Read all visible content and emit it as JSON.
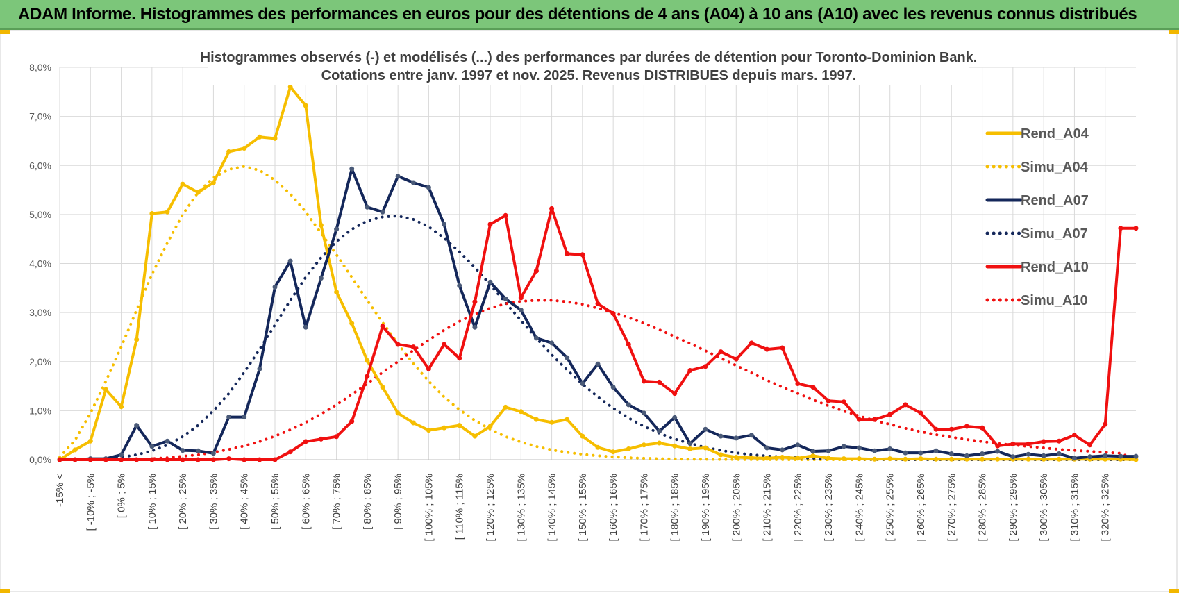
{
  "header": {
    "title": "ADAM Informe. Histogrammes des performances en euros pour des détentions de 4 ans (A04) à 10 ans (A10) avec les revenus connus distribués"
  },
  "colors": {
    "header_bg": "#7cc67a",
    "rend_a04": "#f6be00",
    "rend_a07": "#14275a",
    "rend_a10": "#f01010",
    "grid": "#d9d9d9",
    "axis_text": "#595959"
  },
  "chart_data": {
    "type": "line",
    "title": "Histogrammes observés (-) et modélisés (...) des performances par durées de détention pour Toronto-Dominion Bank.",
    "subtitle": "Cotations entre janv. 1997 et nov. 2025. Revenus DISTRIBUES depuis mars. 1997.",
    "xlabel": "",
    "ylabel": "",
    "ylim": [
      0,
      8
    ],
    "y_ticks": [
      "0,0%",
      "1,0%",
      "2,0%",
      "3,0%",
      "4,0%",
      "5,0%",
      "6,0%",
      "7,0%",
      "8,0%"
    ],
    "x_tick_labels": [
      "-15% <",
      "[ -10% ; -5%",
      "[ 0% ; 5%",
      "[ 10% ; 15%",
      "[ 20% ; 25%",
      "[ 30% ; 35%",
      "[ 40% ; 45%",
      "[ 50% ; 55%",
      "[ 60% ; 65%",
      "[ 70% ; 75%",
      "[ 80% ; 85%",
      "[ 90% ; 95%",
      "[ 100% ; 105%",
      "[ 110% ; 115%",
      "[ 120% ; 125%",
      "[ 130% ; 135%",
      "[ 140% ; 145%",
      "[ 150% ; 155%",
      "[ 160% ; 165%",
      "[ 170% ; 175%",
      "[ 180% ; 185%",
      "[ 190% ; 195%",
      "[ 200% ; 205%",
      "[ 210% ; 215%",
      "[ 220% ; 225%",
      "[ 230% ; 235%",
      "[ 240% ; 245%",
      "[ 250% ; 255%",
      "[ 260% ; 265%",
      "[ 270% ; 275%",
      "[ 280% ; 285%",
      "[ 290% ; 295%",
      "[ 300% ; 305%",
      "[ 310% ; 315%",
      "[ 320% ; 325%"
    ],
    "legend_position": "right",
    "series": [
      {
        "name": "Rend_A04",
        "style": "solid",
        "color": "#f6be00",
        "values": [
          0.0,
          0.2,
          0.38,
          1.43,
          1.08,
          2.45,
          5.02,
          5.05,
          5.62,
          5.45,
          5.65,
          6.28,
          6.35,
          6.58,
          6.55,
          7.6,
          7.22,
          4.78,
          3.42,
          2.78,
          2.02,
          1.48,
          0.95,
          0.75,
          0.6,
          0.65,
          0.7,
          0.48,
          0.68,
          1.07,
          0.98,
          0.82,
          0.76,
          0.82,
          0.48,
          0.25,
          0.16,
          0.22,
          0.3,
          0.34,
          0.28,
          0.22,
          0.24,
          0.1,
          0.05,
          0.04,
          0.03,
          0.05,
          0.03,
          0.08,
          0.03,
          0.02,
          0.02,
          0.01,
          0.02,
          0.01,
          0.02,
          0.01,
          0.01,
          0.01,
          0.01,
          0.01,
          0.01,
          0.01,
          0.01,
          0.01,
          0.01,
          0.01,
          0.01,
          0.01,
          0.0
        ]
      },
      {
        "name": "Simu_A04",
        "style": "dotted",
        "color": "#f6be00",
        "values": [
          0.05,
          0.4,
          0.95,
          1.6,
          2.3,
          3.05,
          3.78,
          4.42,
          5.0,
          5.45,
          5.75,
          5.92,
          5.98,
          5.9,
          5.7,
          5.42,
          5.05,
          4.62,
          4.18,
          3.72,
          3.25,
          2.8,
          2.36,
          1.96,
          1.6,
          1.28,
          1.02,
          0.8,
          0.62,
          0.47,
          0.36,
          0.27,
          0.2,
          0.15,
          0.11,
          0.08,
          0.06,
          0.04,
          0.03,
          0.02,
          0.015,
          0.01,
          0.008,
          0.005,
          0.004,
          0.003,
          0.002,
          0.001,
          0.0,
          0.0,
          0.0,
          0.0,
          0.0,
          0.0,
          0.0,
          0.0,
          0.0,
          0.0,
          0.0,
          0.0,
          0.0,
          0.0,
          0.0,
          0.0,
          0.0,
          0.0,
          0.0,
          0.0,
          0.0,
          0.0,
          0.0
        ]
      },
      {
        "name": "Rend_A07",
        "style": "solid",
        "color": "#14275a",
        "values": [
          0.0,
          0.0,
          0.02,
          0.02,
          0.1,
          0.7,
          0.27,
          0.38,
          0.19,
          0.18,
          0.13,
          0.87,
          0.87,
          1.85,
          3.52,
          4.05,
          2.7,
          3.7,
          4.7,
          5.93,
          5.15,
          5.05,
          5.78,
          5.65,
          5.55,
          4.8,
          3.55,
          2.7,
          3.62,
          3.28,
          3.05,
          2.48,
          2.38,
          2.08,
          1.55,
          1.95,
          1.48,
          1.12,
          0.95,
          0.58,
          0.86,
          0.33,
          0.62,
          0.48,
          0.44,
          0.5,
          0.24,
          0.2,
          0.3,
          0.17,
          0.18,
          0.27,
          0.24,
          0.18,
          0.22,
          0.14,
          0.14,
          0.18,
          0.12,
          0.08,
          0.12,
          0.17,
          0.06,
          0.11,
          0.08,
          0.12,
          0.03,
          0.06,
          0.08,
          0.07,
          0.07
        ]
      },
      {
        "name": "Simu_A07",
        "style": "dotted",
        "color": "#14275a",
        "values": [
          0.0,
          0.0,
          0.01,
          0.02,
          0.05,
          0.1,
          0.18,
          0.3,
          0.47,
          0.7,
          1.0,
          1.35,
          1.78,
          2.25,
          2.75,
          3.25,
          3.72,
          4.12,
          4.45,
          4.7,
          4.87,
          4.95,
          4.97,
          4.9,
          4.75,
          4.52,
          4.24,
          3.92,
          3.57,
          3.2,
          2.84,
          2.48,
          2.14,
          1.83,
          1.54,
          1.28,
          1.05,
          0.85,
          0.68,
          0.54,
          0.42,
          0.33,
          0.25,
          0.19,
          0.14,
          0.1,
          0.075,
          0.055,
          0.04,
          0.028,
          0.02,
          0.014,
          0.01,
          0.007,
          0.005,
          0.003,
          0.002,
          0.001,
          0.0,
          0.0,
          0.0,
          0.0,
          0.0,
          0.0,
          0.0,
          0.0,
          0.0,
          0.0,
          0.0,
          0.0,
          0.0
        ]
      },
      {
        "name": "Rend_A10",
        "style": "solid",
        "color": "#f01010",
        "values": [
          0.0,
          0.0,
          0.0,
          0.0,
          0.0,
          0.0,
          0.0,
          0.0,
          0.0,
          0.0,
          0.0,
          0.02,
          0.0,
          0.0,
          0.0,
          0.16,
          0.37,
          0.42,
          0.47,
          0.78,
          1.7,
          2.72,
          2.35,
          2.3,
          1.85,
          2.35,
          2.07,
          3.22,
          4.8,
          4.98,
          3.3,
          3.85,
          5.12,
          4.2,
          4.18,
          3.18,
          2.98,
          2.35,
          1.6,
          1.58,
          1.35,
          1.82,
          1.9,
          2.2,
          2.05,
          2.38,
          2.25,
          2.28,
          1.55,
          1.48,
          1.2,
          1.18,
          0.82,
          0.82,
          0.92,
          1.12,
          0.95,
          0.62,
          0.62,
          0.68,
          0.65,
          0.28,
          0.32,
          0.32,
          0.37,
          0.38,
          0.5,
          0.3,
          0.72,
          4.72,
          4.72
        ]
      },
      {
        "name": "Simu_A10",
        "style": "dotted",
        "color": "#f01010",
        "values": [
          0.0,
          0.0,
          0.0,
          0.0,
          0.0,
          0.0,
          0.02,
          0.04,
          0.07,
          0.1,
          0.15,
          0.21,
          0.28,
          0.37,
          0.48,
          0.61,
          0.76,
          0.93,
          1.12,
          1.33,
          1.55,
          1.78,
          2.0,
          2.23,
          2.44,
          2.64,
          2.82,
          2.97,
          3.09,
          3.18,
          3.23,
          3.25,
          3.25,
          3.22,
          3.17,
          3.09,
          3.0,
          2.9,
          2.78,
          2.65,
          2.51,
          2.37,
          2.22,
          2.07,
          1.92,
          1.77,
          1.62,
          1.48,
          1.35,
          1.22,
          1.1,
          0.99,
          0.89,
          0.8,
          0.72,
          0.64,
          0.57,
          0.51,
          0.46,
          0.41,
          0.37,
          0.33,
          0.3,
          0.27,
          0.24,
          0.21,
          0.19,
          0.17,
          0.15,
          0.13,
          0.0
        ]
      }
    ]
  }
}
